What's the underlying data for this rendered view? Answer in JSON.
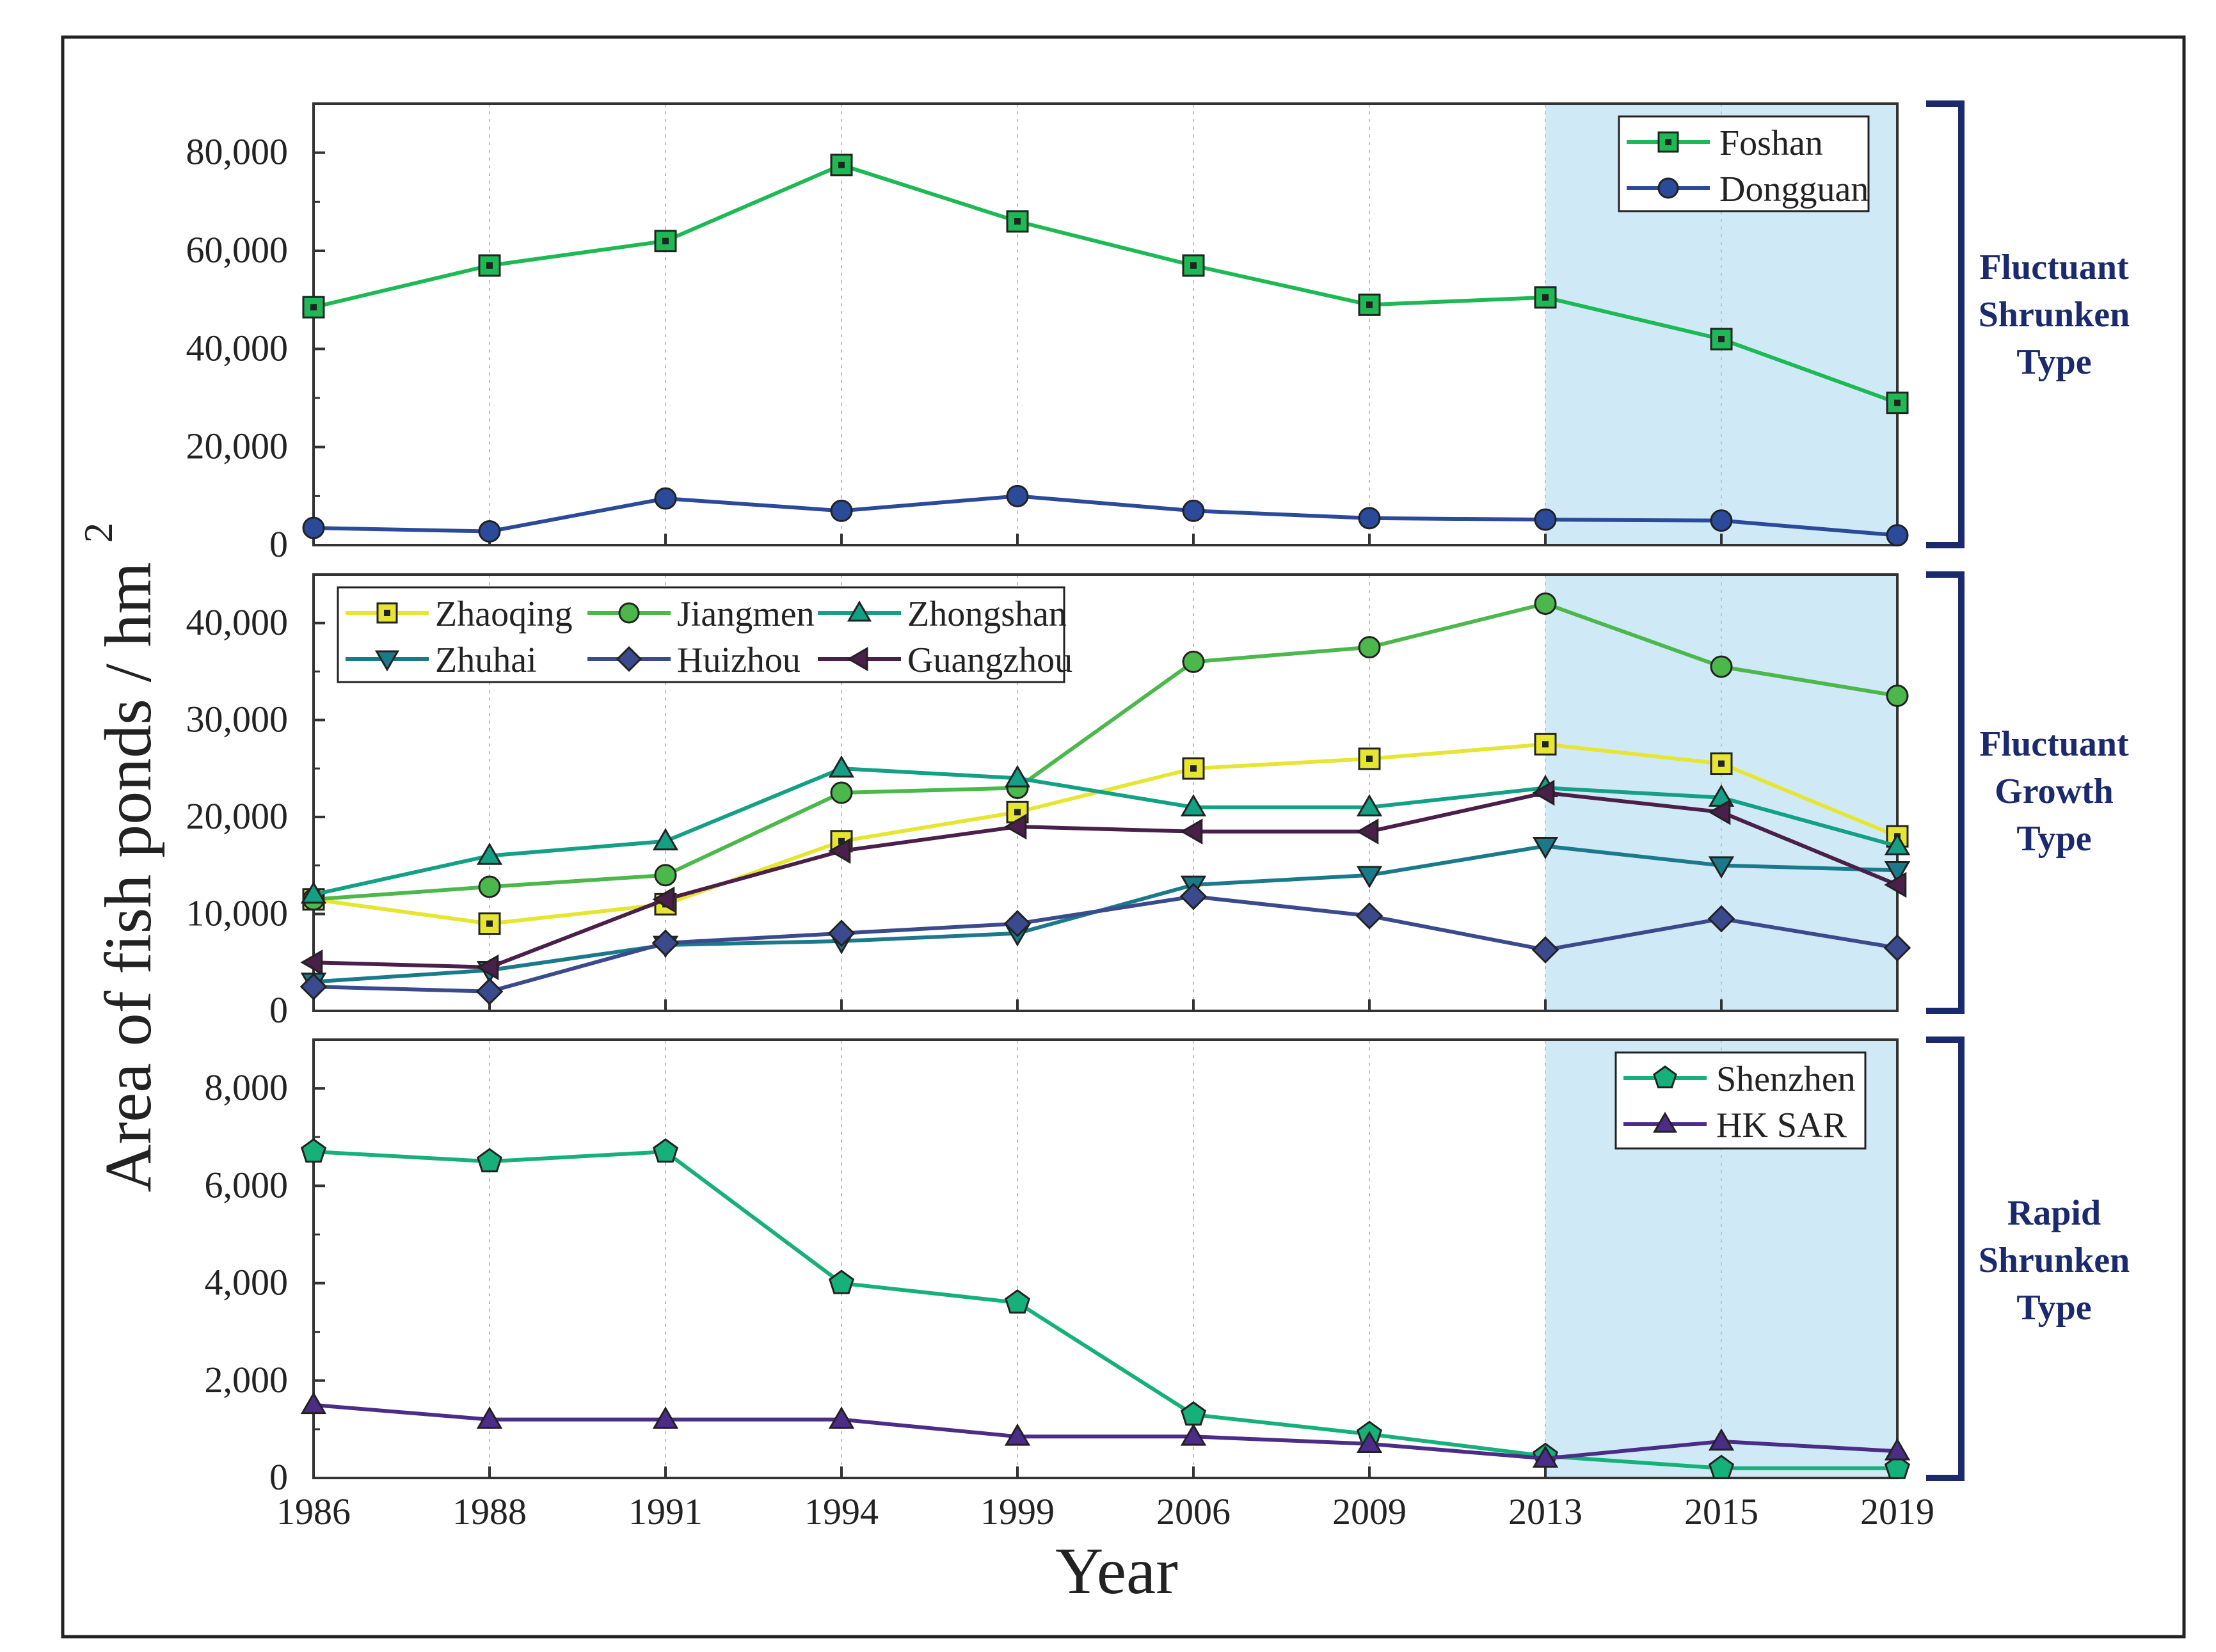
{
  "figure": {
    "xlabel": "Year",
    "ylabel": "Area of fish ponds / hm",
    "ylabel_superscript": "2",
    "highlight_range": [
      "2013",
      "2019"
    ],
    "highlight_color": "#cfeaf6"
  },
  "x_ticks": [
    "1986",
    "1988",
    "1991",
    "1994",
    "1999",
    "2006",
    "2009",
    "2013",
    "2015",
    "2019"
  ],
  "group_labels": [
    [
      "Fluctuant",
      "Shrunken",
      "Type"
    ],
    [
      "Fluctuant",
      "Growth",
      "Type"
    ],
    [
      "Rapid",
      "Shrunken",
      "Type"
    ]
  ],
  "chart_data": [
    {
      "type": "line",
      "categories": [
        "1986",
        "1988",
        "1991",
        "1994",
        "1999",
        "2006",
        "2009",
        "2013",
        "2015",
        "2019"
      ],
      "ylim": [
        0,
        90000
      ],
      "yticks": [
        0,
        20000,
        40000,
        60000,
        80000
      ],
      "ytick_labels": [
        "0",
        "20,000",
        "40,000",
        "60,000",
        "80,000"
      ],
      "legend_position": "top-right",
      "series": [
        {
          "name": "Foshan",
          "color": "#1db954",
          "marker": "square",
          "values": [
            48500,
            57000,
            62000,
            77500,
            66000,
            57000,
            49000,
            50500,
            42000,
            29000
          ]
        },
        {
          "name": "Dongguan",
          "color": "#2b4a9a",
          "marker": "circle",
          "values": [
            3500,
            2800,
            9500,
            7000,
            10000,
            7000,
            5500,
            5200,
            5000,
            2000
          ]
        }
      ]
    },
    {
      "type": "line",
      "categories": [
        "1986",
        "1988",
        "1991",
        "1994",
        "1999",
        "2006",
        "2009",
        "2013",
        "2015",
        "2019"
      ],
      "ylim": [
        0,
        45000
      ],
      "yticks": [
        0,
        10000,
        20000,
        30000,
        40000
      ],
      "ytick_labels": [
        "0",
        "10,000",
        "20,000",
        "30,000",
        "40,000"
      ],
      "legend_position": "top-left",
      "series": [
        {
          "name": "Zhaoqing",
          "color": "#e6e632",
          "marker": "square",
          "values": [
            11500,
            9000,
            11000,
            17500,
            20500,
            25000,
            26000,
            27500,
            25500,
            18000
          ]
        },
        {
          "name": "Jiangmen",
          "color": "#4cb84c",
          "marker": "circle",
          "values": [
            11500,
            12800,
            14000,
            22500,
            23000,
            36000,
            37500,
            42000,
            35500,
            32500
          ]
        },
        {
          "name": "Zhongshan",
          "color": "#13a085",
          "marker": "triangle-up",
          "values": [
            12000,
            16000,
            17500,
            25000,
            24000,
            21000,
            21000,
            23000,
            22000,
            17000
          ]
        },
        {
          "name": "Zhuhai",
          "color": "#1a7a8c",
          "marker": "triangle-down",
          "values": [
            3000,
            4200,
            6800,
            7200,
            8000,
            13000,
            14000,
            17000,
            15000,
            14500
          ]
        },
        {
          "name": "Huizhou",
          "color": "#3a4a8c",
          "marker": "diamond",
          "values": [
            2500,
            2000,
            7000,
            8000,
            9000,
            11800,
            9800,
            6300,
            9500,
            6500
          ]
        },
        {
          "name": "Guangzhou",
          "color": "#4a1f4a",
          "marker": "triangle-left",
          "values": [
            5000,
            4500,
            11500,
            16500,
            19000,
            18500,
            18500,
            22500,
            20500,
            13000
          ]
        }
      ]
    },
    {
      "type": "line",
      "categories": [
        "1986",
        "1988",
        "1991",
        "1994",
        "1999",
        "2006",
        "2009",
        "2013",
        "2015",
        "2019"
      ],
      "ylim": [
        0,
        9000
      ],
      "yticks": [
        0,
        2000,
        4000,
        6000,
        8000
      ],
      "ytick_labels": [
        "0",
        "2,000",
        "4,000",
        "6,000",
        "8,000"
      ],
      "legend_position": "top-right",
      "series": [
        {
          "name": "Shenzhen",
          "color": "#16b07a",
          "marker": "pentagon",
          "values": [
            6700,
            6500,
            6700,
            4000,
            3600,
            1300,
            900,
            450,
            200,
            200
          ]
        },
        {
          "name": "HK SAR",
          "color": "#4b2c87",
          "marker": "triangle-up",
          "values": [
            1500,
            1200,
            1200,
            1200,
            850,
            850,
            700,
            400,
            750,
            550
          ]
        }
      ]
    }
  ]
}
